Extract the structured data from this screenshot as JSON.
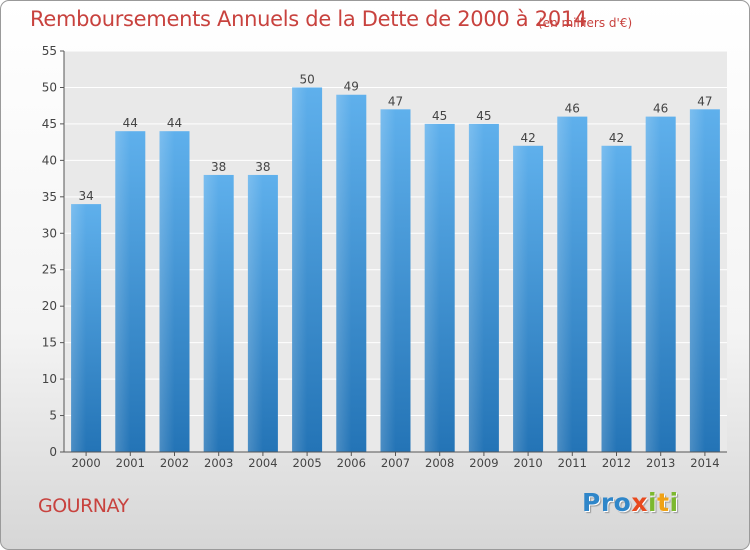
{
  "chart_data": {
    "type": "bar",
    "title": "Remboursements Annuels de la Dette de 2000 à 2014",
    "subtitle": "(en milliers d'€)",
    "categories": [
      "2000",
      "2001",
      "2002",
      "2003",
      "2004",
      "2005",
      "2006",
      "2007",
      "2008",
      "2009",
      "2010",
      "2011",
      "2012",
      "2013",
      "2014"
    ],
    "values": [
      34,
      44,
      44,
      38,
      38,
      50,
      49,
      47,
      45,
      45,
      42,
      46,
      42,
      46,
      47
    ],
    "ylim": [
      0,
      55
    ],
    "yticks": [
      0,
      5,
      10,
      15,
      20,
      25,
      30,
      35,
      40,
      45,
      50,
      55
    ],
    "grid": true,
    "data_labels": true,
    "bar_color": "#3a8fd8"
  },
  "footer": {
    "city": "GOURNAY",
    "brand_letters": [
      {
        "ch": "P",
        "color": "#2f86c9"
      },
      {
        "ch": "r",
        "color": "#2f86c9"
      },
      {
        "ch": "o",
        "color": "#2f86c9"
      },
      {
        "ch": "x",
        "color": "#e84a1e"
      },
      {
        "ch": "i",
        "color": "#7cb82f"
      },
      {
        "ch": "t",
        "color": "#f0a215"
      },
      {
        "ch": "i",
        "color": "#7cb82f"
      }
    ]
  }
}
